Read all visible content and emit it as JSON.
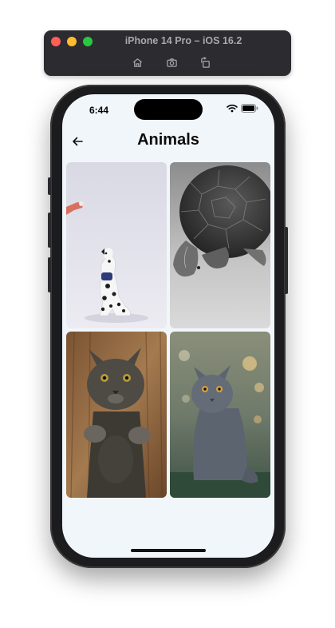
{
  "simulator": {
    "title": "iPhone 14 Pro – iOS 16.2",
    "tools": [
      {
        "icon": "home-icon"
      },
      {
        "icon": "screenshot-icon"
      },
      {
        "icon": "rotate-icon"
      }
    ]
  },
  "status_bar": {
    "time": "6:44",
    "icons": [
      "wifi-icon",
      "battery-icon"
    ]
  },
  "nav": {
    "back_icon": "back-arrow-icon",
    "title": "Animals"
  },
  "gallery": {
    "items": [
      {
        "subject": "dalmatian-dog"
      },
      {
        "subject": "sea-turtle"
      },
      {
        "subject": "standing-cat"
      },
      {
        "subject": "grey-cat-sitting"
      }
    ]
  }
}
